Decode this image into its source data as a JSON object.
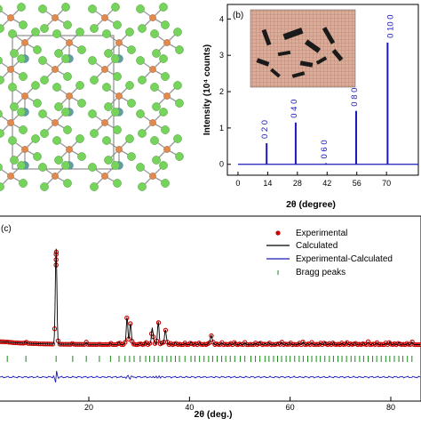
{
  "panel_a": {
    "atom_colors": {
      "cl": "#76d35b",
      "te": "#e08a4e",
      "m": "#5e9fa8",
      "bond": "#9a9a9a",
      "cell": "#777777"
    }
  },
  "panel_b": {
    "label": "(b)",
    "line_color": "#1a1ab8",
    "label_color": "#1a1ab8",
    "inset_photo": {
      "grid_color": "#c0806a",
      "crystal_color": "#1a1a1a"
    }
  },
  "panel_c": {
    "label": "(c)",
    "legend": [
      "Experimental",
      "Calculated",
      "Experimental-Calculated",
      "Bragg peaks"
    ],
    "colors": {
      "experimental": "#cc0000",
      "calculated": "#000000",
      "difference": "#1a1ab8",
      "bragg": "#1a8a1a"
    }
  },
  "chart_data": [
    {
      "type": "bar",
      "xlabel": "2θ (degree)",
      "ylabel": "Intensity (10⁴ counts)",
      "xlim": [
        -5,
        85
      ],
      "ylim": [
        -0.3,
        4.4
      ],
      "xticks": [
        0,
        14,
        28,
        42,
        56,
        70
      ],
      "yticks": [
        0,
        1,
        2,
        3,
        4
      ],
      "peaks": [
        {
          "x": 13.5,
          "y": 0.58,
          "label": "0 2 0"
        },
        {
          "x": 27.2,
          "y": 1.15,
          "label": "0 4 0"
        },
        {
          "x": 41.5,
          "y": 0.03,
          "label": "0 6 0"
        },
        {
          "x": 55.7,
          "y": 1.47,
          "label": "0 8 0"
        },
        {
          "x": 70.5,
          "y": 3.35,
          "label": "0 10 0"
        }
      ]
    },
    {
      "type": "line",
      "xlabel": "2θ (deg.)",
      "xlim": [
        2,
        86
      ],
      "xticks": [
        20,
        40,
        60,
        80
      ],
      "peaks": [
        {
          "x": 13.5,
          "y": 1.0
        },
        {
          "x": 27.6,
          "y": 0.3
        },
        {
          "x": 28.3,
          "y": 0.22
        },
        {
          "x": 32.6,
          "y": 0.18
        },
        {
          "x": 33.8,
          "y": 0.24
        },
        {
          "x": 35.2,
          "y": 0.16
        },
        {
          "x": 44.3,
          "y": 0.1
        }
      ],
      "bragg_positions": [
        3.8,
        7.5,
        13.5,
        16.8,
        19.5,
        22.1,
        24.3,
        26.0,
        27.2,
        28.1,
        29.0,
        30.2,
        31.3,
        32.1,
        33.0,
        33.8,
        34.6,
        35.5,
        36.3,
        37.2,
        38.0,
        39.1,
        40.3,
        41.1,
        42.0,
        42.9,
        43.8,
        44.6,
        45.5,
        46.4,
        47.2,
        48.1,
        49.0,
        50.1,
        51.0,
        52.2,
        53.1,
        54.0,
        55.0,
        55.8,
        56.7,
        57.5,
        58.3,
        59.2,
        60.0,
        60.9,
        61.8,
        62.6,
        63.5,
        64.3,
        65.2,
        66.0,
        66.9,
        67.8,
        68.6,
        69.5,
        70.3,
        71.2,
        72.1,
        72.9,
        73.8,
        74.6,
        75.5,
        76.4,
        77.2,
        78.1,
        79.0,
        79.8,
        80.7,
        81.6,
        82.4,
        83.3,
        84.2
      ]
    }
  ]
}
